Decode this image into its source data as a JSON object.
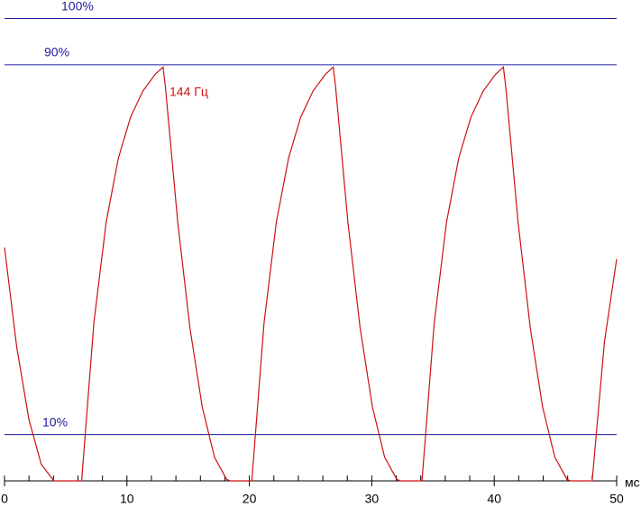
{
  "chart_data": {
    "type": "line",
    "annotation": "144 Гц",
    "x_unit": "мс",
    "x": [
      0,
      1,
      2,
      3,
      4,
      4.1,
      6.3,
      7.3,
      8.3,
      9.3,
      10.3,
      11.3,
      12.3,
      12.95,
      13.15,
      14.15,
      15.15,
      16.15,
      17.15,
      18.15,
      18.45,
      20.2,
      21.2,
      22.2,
      23.2,
      24.2,
      25.2,
      26.2,
      26.85,
      27.05,
      28.05,
      29.05,
      30.05,
      31.05,
      32.05,
      32.35,
      34.1,
      35.1,
      36.1,
      37.1,
      38.1,
      39.1,
      40.1,
      40.75,
      40.95,
      41.95,
      42.95,
      43.95,
      44.95,
      45.95,
      46.25,
      48.0,
      49,
      50
    ],
    "values": [
      50.5,
      28.9,
      13.2,
      3.6,
      0.1,
      0,
      0,
      34.2,
      55.9,
      69.8,
      78.7,
      84.3,
      87.9,
      89.5,
      85,
      55.9,
      33.0,
      16.0,
      5.1,
      0.3,
      0,
      0,
      34.2,
      55.9,
      69.8,
      78.7,
      84.3,
      87.9,
      89.5,
      85,
      55.9,
      33.0,
      16.0,
      5.1,
      0.3,
      0,
      0,
      34.2,
      55.9,
      69.8,
      78.7,
      84.3,
      87.9,
      89.5,
      85,
      55.9,
      33.0,
      16.0,
      5.1,
      0.3,
      0,
      0,
      30,
      48
    ],
    "color": "#cc1111",
    "grid_color": "#1a1aa0",
    "xlim": [
      0,
      50
    ],
    "xticks": [
      0,
      10,
      20,
      30,
      40,
      50
    ],
    "xminorticks": [
      2,
      4,
      6,
      8,
      12,
      14,
      16,
      18,
      22,
      24,
      26,
      28,
      32,
      34,
      36,
      38,
      42,
      44,
      46,
      48
    ],
    "ylim": [
      0,
      104
    ],
    "yticks": [
      {
        "value": 10,
        "label": "10%"
      },
      {
        "value": 90,
        "label": "90%"
      },
      {
        "value": 100,
        "label": "100%"
      }
    ],
    "grid": true
  }
}
